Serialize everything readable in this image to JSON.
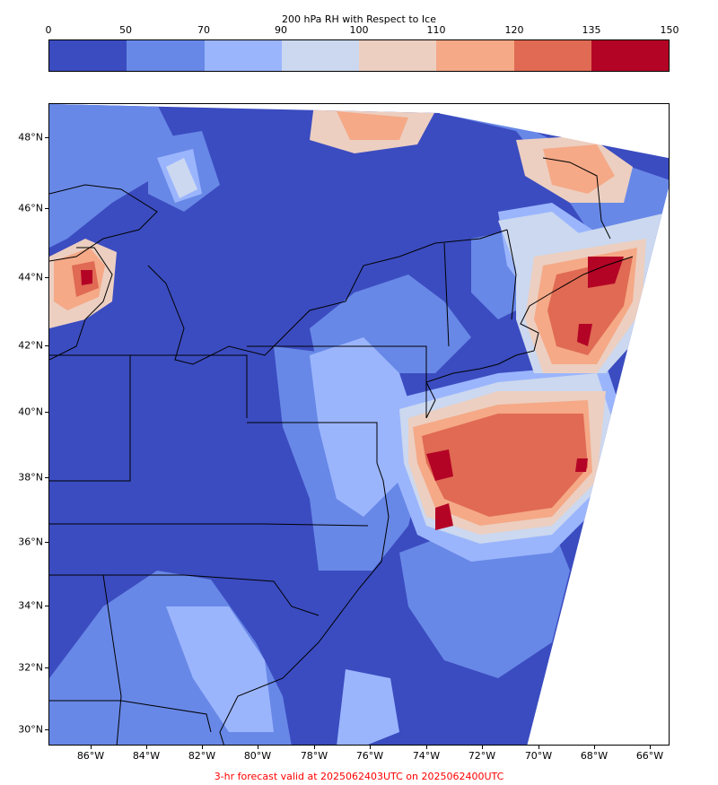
{
  "colorbar": {
    "title": "200 hPa RH with Respect to Ice",
    "ticks": [
      "0",
      "50",
      "70",
      "90",
      "100",
      "110",
      "120",
      "135",
      "150"
    ],
    "colors": [
      "#3b4cc0",
      "#6888e7",
      "#9bb5fd",
      "#cbd8ef",
      "#eccfc1",
      "#f5a987",
      "#e06a53",
      "#b40426"
    ]
  },
  "map": {
    "lat_labels": [
      "48°N",
      "46°N",
      "44°N",
      "42°N",
      "40°N",
      "38°N",
      "36°N",
      "34°N",
      "32°N",
      "30°N"
    ],
    "lon_labels": [
      "86°W",
      "84°W",
      "82°W",
      "80°W",
      "78°W",
      "76°W",
      "74°W",
      "72°W",
      "70°W",
      "68°W",
      "66°W"
    ]
  },
  "footer": "3-hr forecast valid at 2025062403UTC on 2025062400UTC"
}
